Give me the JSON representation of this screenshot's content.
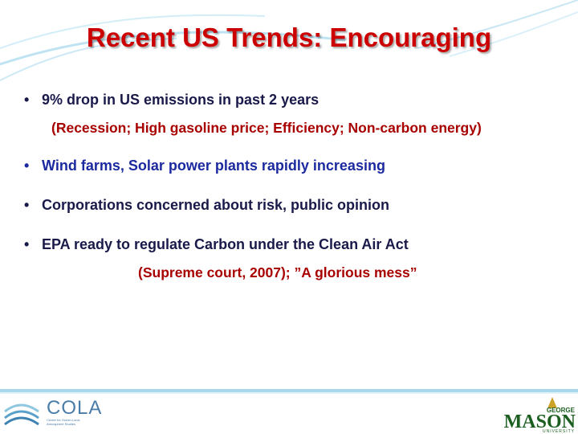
{
  "header": {
    "title": "Recent US Trends: Encouraging"
  },
  "bullets": [
    {
      "text": "9% drop in US emissions in past 2 years",
      "subtext": "(Recession; High gasoline price; Efficiency; Non-carbon energy)"
    },
    {
      "text": "Wind farms, Solar power plants rapidly increasing"
    },
    {
      "text": "Corporations concerned about risk, public opinion"
    },
    {
      "text": "EPA ready to regulate Carbon under the Clean Air Act",
      "subtext": "(Supreme court, 2007); ”A glorious mess”"
    }
  ],
  "footer": {
    "left_logo": {
      "name": "COLA",
      "subtitle": "Center for Ocean-Land-Atmosphere Studies"
    },
    "right_logo": {
      "top": "GEORGE",
      "name": "MASON",
      "bottom": "UNIVERSITY"
    }
  }
}
